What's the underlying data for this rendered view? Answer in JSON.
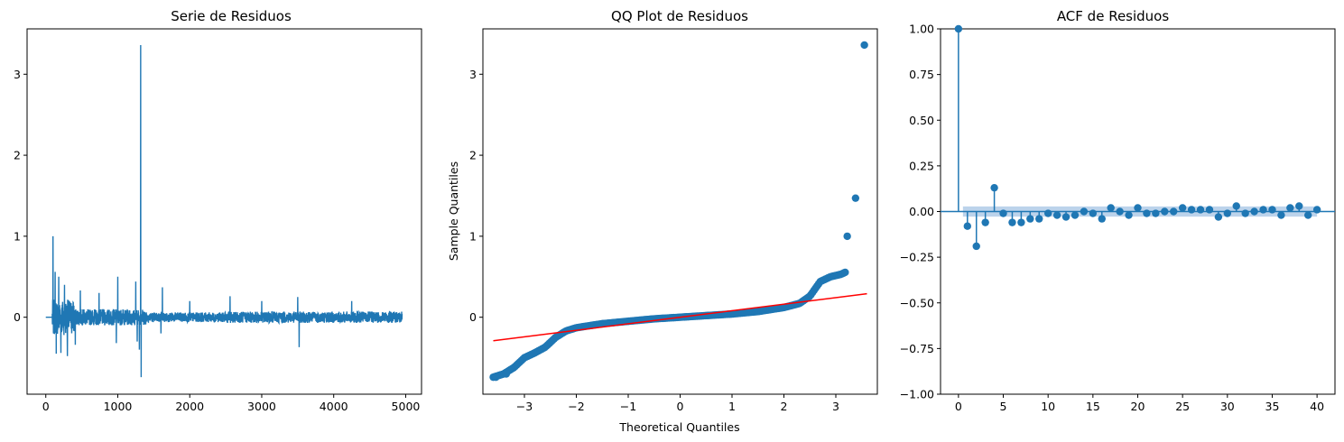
{
  "chart_data": [
    {
      "type": "line",
      "title": "Serie de Residuos",
      "xlabel": "",
      "ylabel": "",
      "xlim": [
        -260,
        5220
      ],
      "ylim": [
        -0.95,
        3.56
      ],
      "xticks": [
        0,
        1000,
        2000,
        3000,
        4000,
        5000
      ],
      "yticks": [
        0,
        1,
        2,
        3
      ],
      "color": "#1f77b4",
      "n_points": 4950,
      "flat_until": 90,
      "x_end": 4950,
      "spikes": [
        {
          "x": 100,
          "y": 1.0
        },
        {
          "x": 108,
          "y": -0.2
        },
        {
          "x": 130,
          "y": 0.56
        },
        {
          "x": 145,
          "y": -0.45
        },
        {
          "x": 180,
          "y": 0.5
        },
        {
          "x": 210,
          "y": -0.44
        },
        {
          "x": 260,
          "y": 0.4
        },
        {
          "x": 300,
          "y": -0.48
        },
        {
          "x": 410,
          "y": -0.34
        },
        {
          "x": 480,
          "y": 0.33
        },
        {
          "x": 740,
          "y": 0.3
        },
        {
          "x": 980,
          "y": -0.32
        },
        {
          "x": 1000,
          "y": 0.5
        },
        {
          "x": 1250,
          "y": 0.44
        },
        {
          "x": 1270,
          "y": -0.3
        },
        {
          "x": 1300,
          "y": -0.4
        },
        {
          "x": 1318,
          "y": 3.36
        },
        {
          "x": 1325,
          "y": -0.74
        },
        {
          "x": 1620,
          "y": 0.37
        },
        {
          "x": 1600,
          "y": -0.2
        },
        {
          "x": 2000,
          "y": 0.2
        },
        {
          "x": 2560,
          "y": 0.26
        },
        {
          "x": 3000,
          "y": 0.2
        },
        {
          "x": 3500,
          "y": 0.25
        },
        {
          "x": 3520,
          "y": -0.37
        },
        {
          "x": 4250,
          "y": 0.2
        }
      ]
    },
    {
      "type": "scatter",
      "title": "QQ Plot de Residuos",
      "xlabel": "Theoretical Quantiles",
      "ylabel": "Sample Quantiles",
      "xlim": [
        -3.8,
        3.8
      ],
      "ylim": [
        -0.95,
        3.56
      ],
      "xticks": [
        -3,
        -2,
        -1,
        0,
        1,
        2,
        3
      ],
      "yticks": [
        0,
        1,
        2,
        3
      ],
      "point_color": "#1f77b4",
      "reference_line": {
        "color": "#ff0000",
        "x": [
          -3.6,
          3.6
        ],
        "y": [
          -0.29,
          0.29
        ]
      },
      "curve": [
        [
          -3.6,
          -0.74
        ],
        [
          -3.4,
          -0.7
        ],
        [
          -3.2,
          -0.62
        ],
        [
          -3.0,
          -0.5
        ],
        [
          -2.8,
          -0.44
        ],
        [
          -2.6,
          -0.37
        ],
        [
          -2.4,
          -0.25
        ],
        [
          -2.2,
          -0.17
        ],
        [
          -2.0,
          -0.13
        ],
        [
          -1.5,
          -0.08
        ],
        [
          -1.0,
          -0.05
        ],
        [
          -0.5,
          -0.02
        ],
        [
          0.0,
          0.0
        ],
        [
          0.5,
          0.02
        ],
        [
          1.0,
          0.04
        ],
        [
          1.5,
          0.07
        ],
        [
          2.0,
          0.12
        ],
        [
          2.3,
          0.17
        ],
        [
          2.5,
          0.26
        ],
        [
          2.7,
          0.44
        ],
        [
          2.9,
          0.5
        ],
        [
          3.1,
          0.53
        ],
        [
          3.2,
          0.56
        ]
      ],
      "outliers": [
        {
          "x": -3.55,
          "y": -0.74
        },
        {
          "x": -3.35,
          "y": -0.7
        },
        {
          "x": 3.22,
          "y": 1.0
        },
        {
          "x": 3.38,
          "y": 1.47
        },
        {
          "x": 3.55,
          "y": 3.36
        }
      ]
    },
    {
      "type": "bar",
      "subtype": "acf-stem",
      "title": "ACF de Residuos",
      "xlabel": "",
      "ylabel": "",
      "xlim": [
        -2,
        42
      ],
      "ylim": [
        -1.0,
        1.0
      ],
      "xticks": [
        0,
        5,
        10,
        15,
        20,
        25,
        30,
        35,
        40
      ],
      "yticks": [
        -1.0,
        -0.75,
        -0.5,
        -0.25,
        0.0,
        0.25,
        0.5,
        0.75,
        1.0
      ],
      "ytick_labels": [
        "−1.00",
        "−0.75",
        "−0.50",
        "−0.25",
        "0.00",
        "0.25",
        "0.50",
        "0.75",
        "1.00"
      ],
      "color": "#1f77b4",
      "confidence_band": 0.028,
      "band_color": "#a6c4e4",
      "lags": [
        0,
        1,
        2,
        3,
        4,
        5,
        6,
        7,
        8,
        9,
        10,
        11,
        12,
        13,
        14,
        15,
        16,
        17,
        18,
        19,
        20,
        21,
        22,
        23,
        24,
        25,
        26,
        27,
        28,
        29,
        30,
        31,
        32,
        33,
        34,
        35,
        36,
        37,
        38,
        39,
        40
      ],
      "values": [
        1.0,
        -0.08,
        -0.19,
        -0.06,
        0.13,
        -0.01,
        -0.06,
        -0.06,
        -0.04,
        -0.04,
        -0.01,
        -0.02,
        -0.03,
        -0.02,
        0.0,
        -0.01,
        -0.04,
        0.02,
        0.0,
        -0.02,
        0.02,
        -0.01,
        -0.01,
        0.0,
        0.0,
        0.02,
        0.01,
        0.01,
        0.01,
        -0.03,
        -0.01,
        0.03,
        -0.01,
        0.0,
        0.01,
        0.01,
        -0.02,
        0.02,
        0.03,
        -0.02,
        0.01
      ]
    }
  ]
}
